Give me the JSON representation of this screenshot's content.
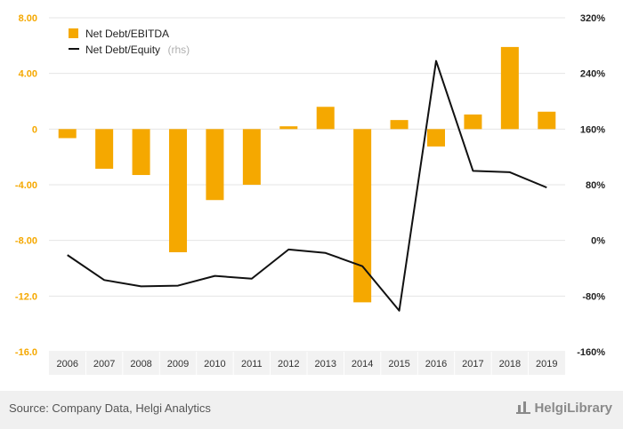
{
  "chart_data": {
    "type": "bar+line",
    "categories": [
      "2006",
      "2007",
      "2008",
      "2009",
      "2010",
      "2011",
      "2012",
      "2013",
      "2014",
      "2015",
      "2016",
      "2017",
      "2018",
      "2019"
    ],
    "series": [
      {
        "name": "Net Debt/EBITDA",
        "kind": "bar",
        "axis": "left",
        "color": "#f5a800",
        "values": [
          -0.65,
          -2.85,
          -3.3,
          -8.85,
          -5.1,
          -4.0,
          0.2,
          1.6,
          -12.45,
          0.65,
          -1.25,
          1.05,
          5.9,
          1.25
        ]
      },
      {
        "name": "Net Debt/Equity",
        "name_suffix": "(rhs)",
        "kind": "line",
        "axis": "right",
        "color": "#111111",
        "values": [
          -21,
          -57,
          -66,
          -65,
          -51,
          -55,
          -13,
          -18,
          -37,
          -101,
          258,
          100,
          98,
          76
        ]
      }
    ],
    "left_axis": {
      "min": -16,
      "max": 8,
      "ticks": [
        "8.00",
        "4.00",
        "0",
        "-4.00",
        "-8.00",
        "-12.0",
        "-16.0"
      ],
      "tick_values": [
        8,
        4,
        0,
        -4,
        -8,
        -12,
        -16
      ]
    },
    "right_axis": {
      "min": -160,
      "max": 320,
      "ticks": [
        "320%",
        "240%",
        "160%",
        "80%",
        "0%",
        "-80%",
        "-160%"
      ],
      "tick_values": [
        320,
        240,
        160,
        80,
        0,
        -80,
        -160
      ]
    },
    "legend_position": "top-left",
    "grid": true
  },
  "footer": {
    "source": "Source: Company Data, Helgi Analytics",
    "brand": "HelgiLibrary"
  }
}
